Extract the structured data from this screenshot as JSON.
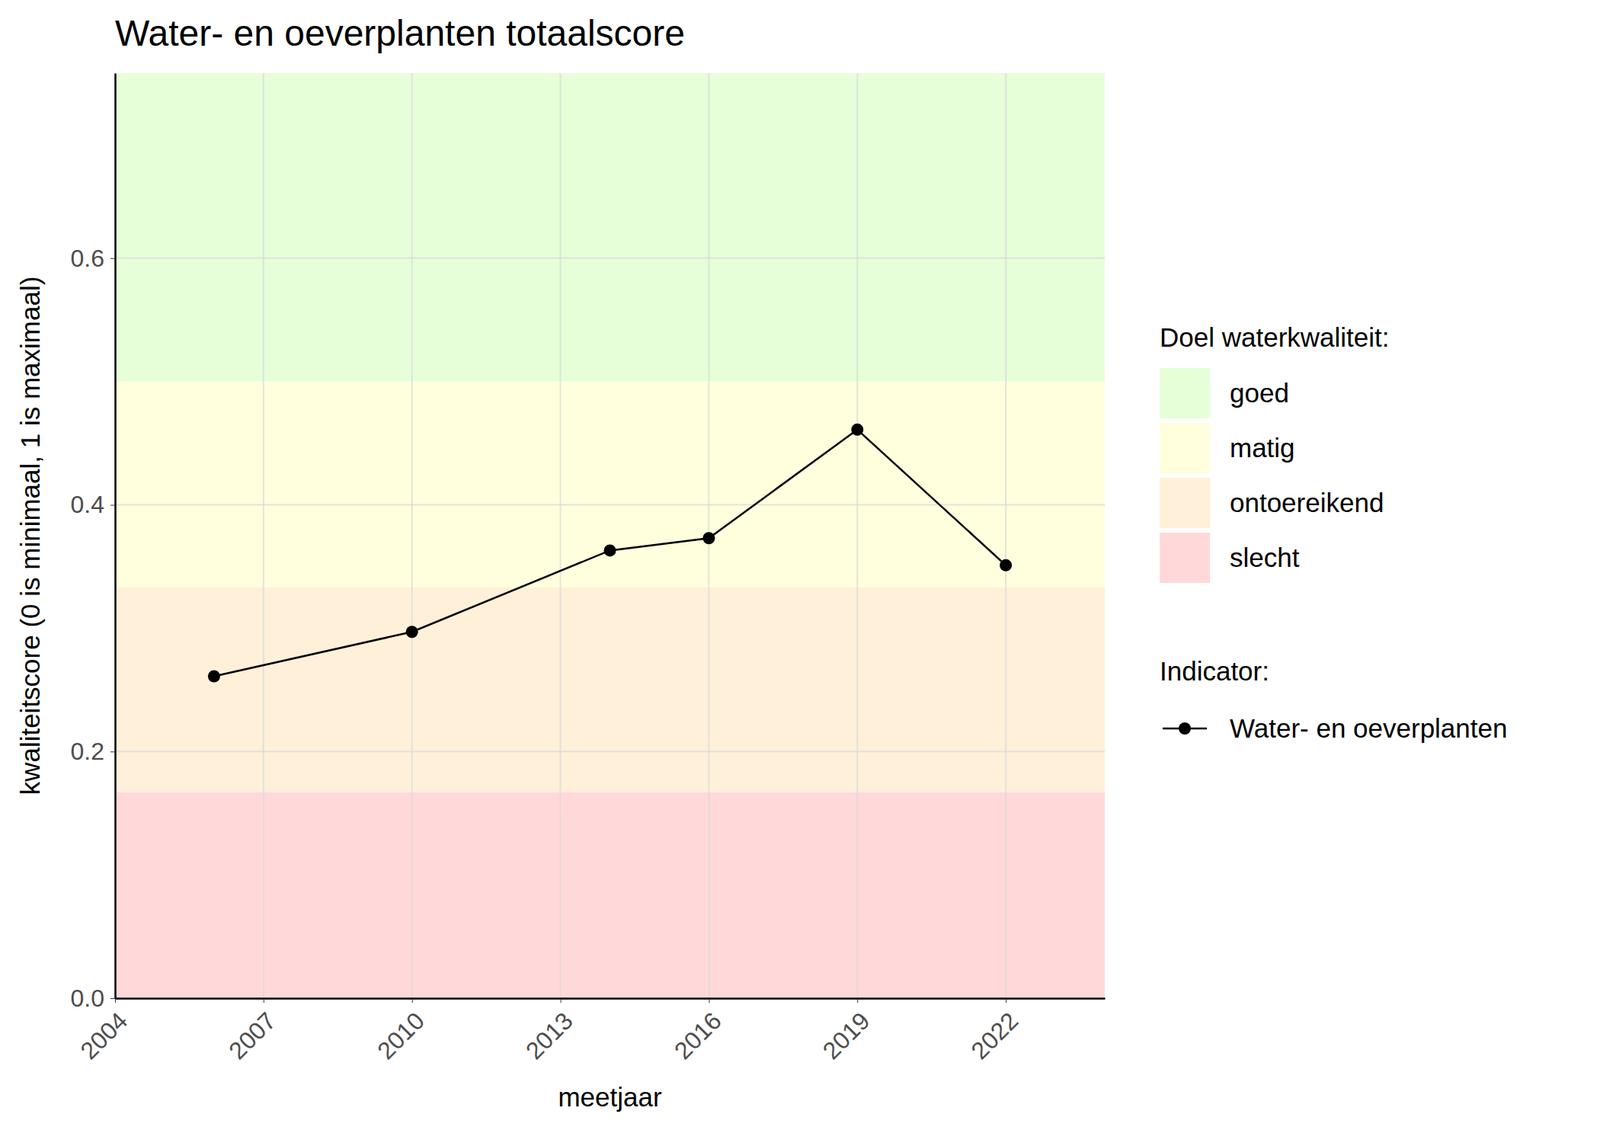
{
  "chart_data": {
    "type": "line",
    "title": "Water- en oeverplanten totaalscore",
    "x_label": "meetjaar",
    "y_label": "kwaliteitscore (0 is minimaal, 1 is maximaal)",
    "x": [
      2006,
      2010,
      2014,
      2016,
      2019,
      2022
    ],
    "series": [
      {
        "name": "Water- en oeverplanten",
        "color": "#000000",
        "marker": "circle",
        "line_style": "solid",
        "values": [
          0.261,
          0.297,
          0.363,
          0.373,
          0.461,
          0.351
        ]
      }
    ],
    "xlim": [
      2004,
      2024
    ],
    "xticks": [
      2004,
      2007,
      2010,
      2013,
      2016,
      2019,
      2022
    ],
    "ylim": [
      0,
      0.75
    ],
    "yticks": [
      {
        "value": 0,
        "label": "0.0"
      },
      {
        "value": 0.2,
        "label": "0.2"
      },
      {
        "value": 0.4,
        "label": "0.4"
      },
      {
        "value": 0.6,
        "label": "0.6"
      }
    ],
    "grid": true,
    "legend": "right",
    "legend_title": "Indicator:",
    "bands": {
      "title": "Doel waterkwaliteit:",
      "items": [
        {
          "name": "goed",
          "from": 0.5,
          "to": 0.75,
          "color": "#e6ffd9"
        },
        {
          "name": "matig",
          "from": 0.333,
          "to": 0.5,
          "color": "#ffffdd"
        },
        {
          "name": "ontoereikend",
          "from": 0.167,
          "to": 0.333,
          "color": "#fff0d9"
        },
        {
          "name": "slecht",
          "from": 0,
          "to": 0.167,
          "color": "#ffd9d9"
        }
      ]
    }
  }
}
